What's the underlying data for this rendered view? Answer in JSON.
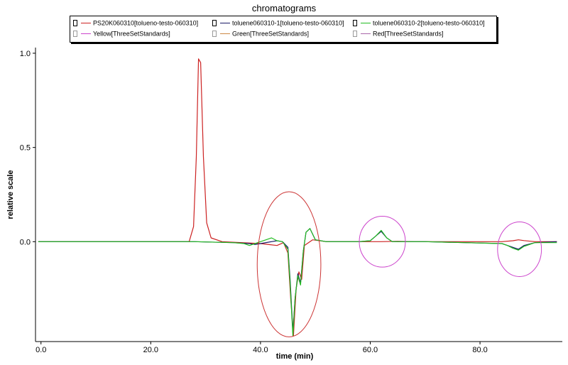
{
  "chart_data": {
    "type": "line",
    "title": "chromatograms",
    "xlabel": "time (min)",
    "ylabel": "relative scale",
    "xlim": [
      -1,
      95
    ],
    "ylim": [
      -0.53,
      1.03
    ],
    "x_ticks": [
      0,
      20,
      40,
      60,
      80
    ],
    "x_tick_labels": [
      "0.0",
      "20.0",
      "40.0",
      "60.0",
      "80.0"
    ],
    "y_ticks": [
      1,
      0.5,
      0
    ],
    "y_tick_labels": [
      "1.0",
      "0.5",
      "0.0"
    ],
    "grid": false,
    "legend_position": "top",
    "series": [
      {
        "name": "PS20K060310[tolueno-testo-060310]",
        "color": "#cc2222",
        "x": [
          -0.5,
          27,
          27.8,
          28.3,
          28.7,
          29.1,
          29.6,
          30.2,
          31,
          33,
          40,
          43,
          44.2,
          45,
          45.5,
          46,
          46.5,
          47,
          47.5,
          48,
          49.5,
          52,
          60,
          62,
          65,
          68,
          80,
          84,
          86,
          87,
          88,
          90,
          94
        ],
        "y": [
          0,
          0,
          0.08,
          0.45,
          0.97,
          0.95,
          0.45,
          0.1,
          0.02,
          0,
          -0.01,
          -0.02,
          -0.005,
          -0.06,
          -0.3,
          -0.5,
          -0.25,
          -0.16,
          -0.2,
          -0.02,
          0.01,
          0,
          0,
          0,
          0.002,
          0,
          0,
          0,
          0.005,
          0.01,
          0.006,
          0,
          0
        ]
      },
      {
        "name": "toluene060310-1[tolueno-testo-060310]",
        "color": "#1a1a66",
        "x": [
          -0.5,
          28,
          35,
          38,
          39,
          40,
          42,
          43,
          44,
          45,
          45.4,
          45.9,
          46.3,
          46.8,
          47.3,
          47.8,
          48.3,
          49,
          50,
          52,
          58,
          60,
          61,
          62,
          63,
          64,
          66,
          70,
          84,
          86,
          87,
          88,
          90,
          94
        ],
        "y": [
          0,
          0,
          -0.005,
          -0.01,
          -0.015,
          -0.01,
          0,
          0.005,
          0,
          -0.03,
          -0.2,
          -0.48,
          -0.3,
          -0.17,
          -0.22,
          -0.05,
          0.05,
          0.07,
          0.01,
          0,
          0,
          0.005,
          0.03,
          0.055,
          0.02,
          0,
          0,
          0,
          -0.01,
          -0.03,
          -0.04,
          -0.02,
          -0.005,
          0
        ]
      },
      {
        "name": "toluene060310-2[tolueno-testo-060310]",
        "color": "#22bb22",
        "x": [
          -0.5,
          28,
          35,
          37,
          38,
          39,
          40,
          41,
          42,
          43,
          44,
          45,
          45.4,
          45.9,
          46.3,
          46.8,
          47.3,
          47.8,
          48.3,
          49,
          50,
          52,
          58,
          60,
          61,
          62,
          63,
          64,
          66,
          70,
          84,
          85,
          86,
          87,
          88,
          90,
          94
        ],
        "y": [
          0,
          0,
          -0.005,
          -0.01,
          -0.02,
          -0.01,
          0.0,
          0.01,
          0.02,
          0.005,
          0,
          -0.04,
          -0.22,
          -0.5,
          -0.3,
          -0.18,
          -0.23,
          -0.05,
          0.05,
          0.07,
          0.01,
          0,
          0,
          0.005,
          0.03,
          0.06,
          0.02,
          0,
          0,
          0,
          -0.01,
          -0.02,
          -0.035,
          -0.045,
          -0.025,
          -0.005,
          -0.005
        ]
      },
      {
        "name": "Yellow[ThreeSetStandards]",
        "color": "#cc44cc",
        "x": [],
        "y": []
      },
      {
        "name": "Green[ThreeSetStandards]",
        "color": "#cc8844",
        "x": [],
        "y": []
      },
      {
        "name": "Red[ThreeSetStandards]",
        "color": "#aa66aa",
        "x": [],
        "y": []
      }
    ],
    "annotations": [
      {
        "shape": "ellipse",
        "color": "#cc3333",
        "cx": 45.2,
        "cy": -0.12,
        "rx": 5.8,
        "ry": 0.385
      },
      {
        "shape": "ellipse",
        "color": "#cc44cc",
        "cx": 62.2,
        "cy": 0.0,
        "rx": 4.2,
        "ry": 0.135
      },
      {
        "shape": "ellipse",
        "color": "#cc44cc",
        "cx": 87.2,
        "cy": -0.04,
        "rx": 4.0,
        "ry": 0.145
      }
    ]
  }
}
